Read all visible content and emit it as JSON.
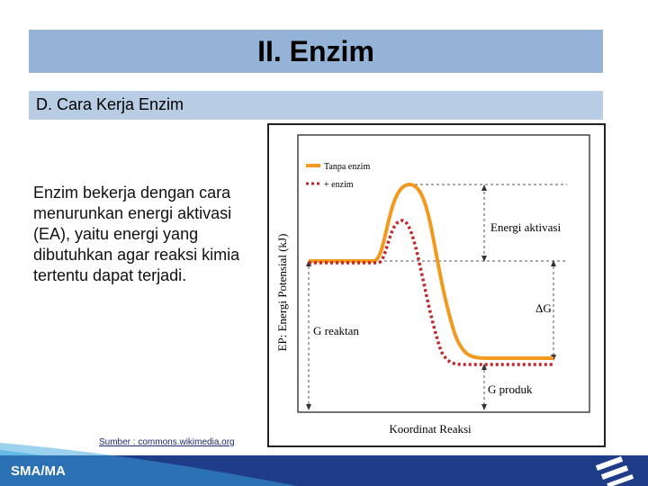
{
  "header": {
    "title": "II. Enzim"
  },
  "section": {
    "title": "D. Cara Kerja Enzim"
  },
  "body": {
    "text": "Enzim bekerja dengan cara menurunkan energi aktivasi (EA), yaitu energi yang dibutuhkan agar reaksi kimia tertentu dapat terjadi."
  },
  "figure": {
    "y_label": "EP: Energi Potensial (kJ)",
    "x_label": "Koordinat Reaksi",
    "legend": [
      "Tanpa enzim",
      "+ enzim"
    ],
    "annotations": [
      "Energi aktivasi",
      "ΔG",
      "G reaktan",
      "G produk"
    ]
  },
  "source": "Sumber : commons.wikimedia.org",
  "footer": {
    "label": "SMA/MA"
  }
}
